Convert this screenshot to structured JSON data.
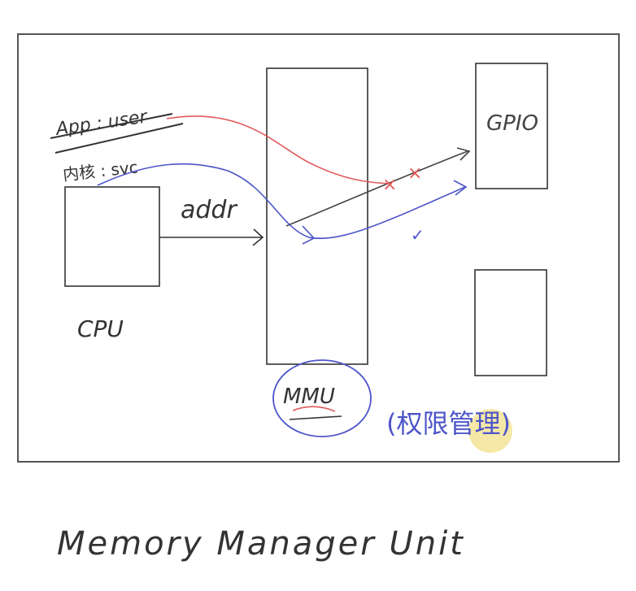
{
  "labels": {
    "app_user": "App : user",
    "kernel_svc": "内核 : svc",
    "addr": "addr",
    "cpu": "CPU",
    "gpio": "GPIO",
    "mmu": "MMU",
    "permission_note": "(权限管理)",
    "footer": "Memory Manager Unit"
  },
  "marks": {
    "cross_mark": "×",
    "check_mark": "✓"
  },
  "colors": {
    "pen_black": "#333333",
    "pen_red": "#e25a5a",
    "pen_blue": "#4d55c9",
    "highlight": "#f2e08a"
  }
}
